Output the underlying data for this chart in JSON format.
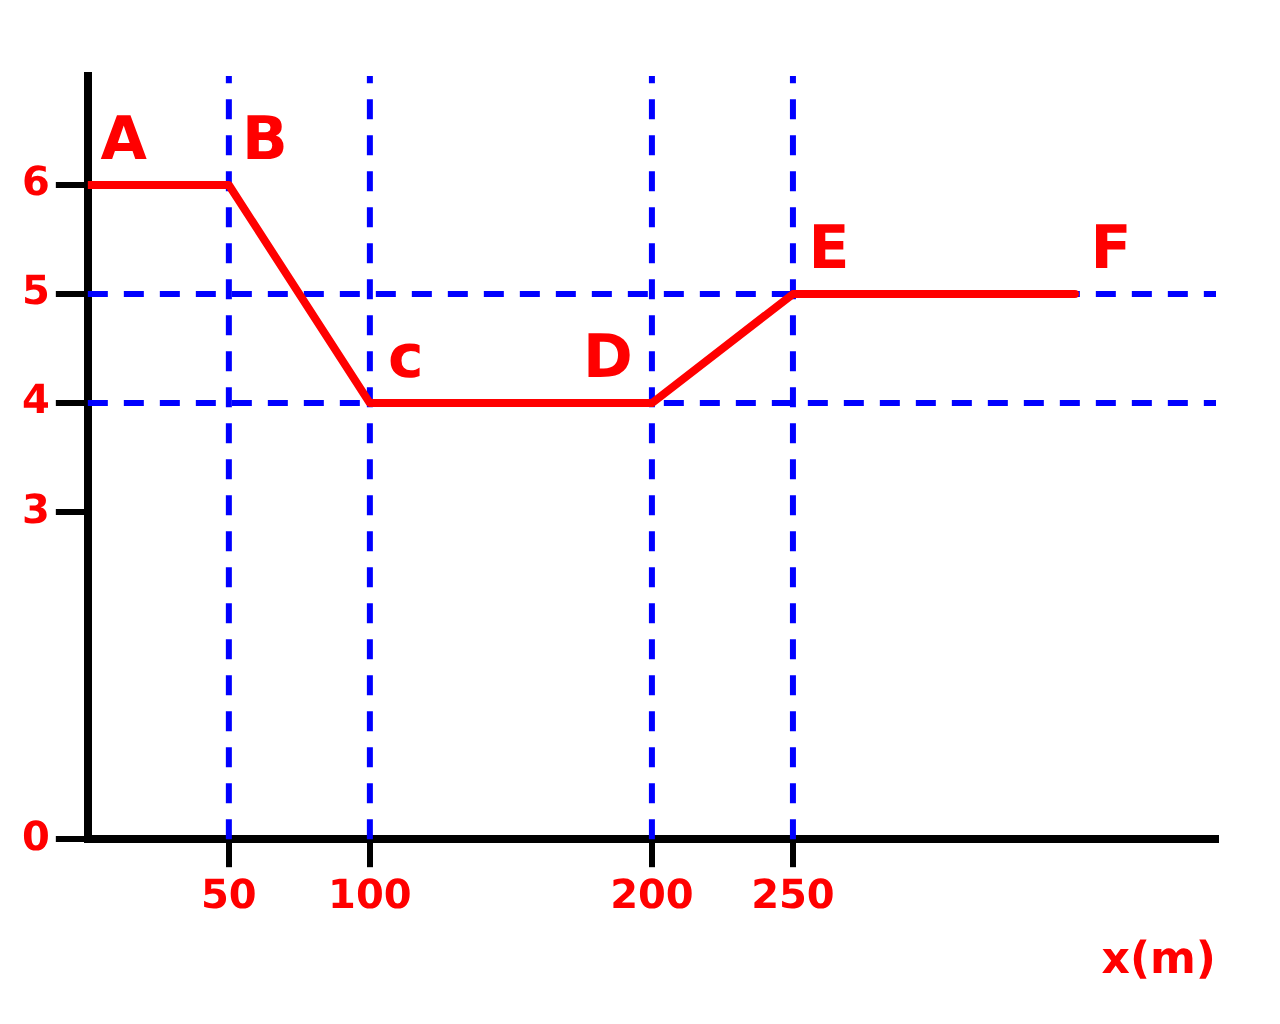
{
  "chart_data": {
    "type": "line",
    "xlabel": "x(m)",
    "x": [
      0,
      50,
      100,
      200,
      250,
      350
    ],
    "series": [
      {
        "color": "#ff0000",
        "values": [
          6,
          6,
          4,
          4,
          5,
          5
        ]
      }
    ],
    "xlim": [
      0,
      400
    ],
    "xticks": [
      50,
      100,
      200,
      250
    ],
    "ylim": [
      0,
      7
    ],
    "yticks": [
      0,
      3,
      4,
      5,
      6
    ],
    "grid": false,
    "legend": false,
    "marker": "none",
    "line_style": "solid",
    "ref_lines": [
      {
        "axis": "y",
        "value": 5,
        "color": "#0000ff",
        "line_style": "dashed"
      },
      {
        "axis": "y",
        "value": 4,
        "color": "#0000ff",
        "line_style": "dashed"
      },
      {
        "axis": "x",
        "value": 50,
        "color": "#0000ff",
        "line_style": "dashed"
      },
      {
        "axis": "x",
        "value": 100,
        "color": "#0000ff",
        "line_style": "dashed"
      },
      {
        "axis": "x",
        "value": 200,
        "color": "#0000ff",
        "line_style": "dashed"
      },
      {
        "axis": "x",
        "value": 250,
        "color": "#0000ff",
        "line_style": "dashed"
      }
    ],
    "annotations": [
      {
        "text": "A",
        "x": 0,
        "y": 6
      },
      {
        "text": "B",
        "x": 50,
        "y": 6
      },
      {
        "text": "c",
        "x": 100,
        "y": 4
      },
      {
        "text": "D",
        "x": 200,
        "y": 4
      },
      {
        "text": "E",
        "x": 250,
        "y": 5
      },
      {
        "text": "F",
        "x": 350,
        "y": 5
      }
    ]
  }
}
